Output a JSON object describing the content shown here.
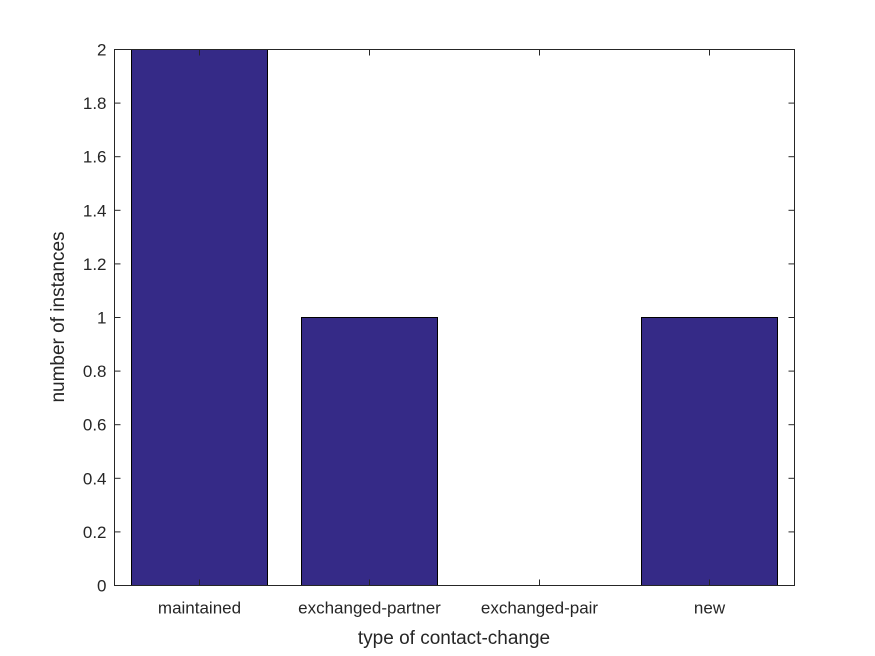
{
  "chart_data": {
    "type": "bar",
    "categories": [
      "maintained",
      "exchanged-partner",
      "exchanged-pair",
      "new"
    ],
    "values": [
      2,
      1,
      0,
      1
    ],
    "title": "",
    "xlabel": "type of contact-change",
    "ylabel": "number of instances",
    "ylim": [
      0,
      2
    ],
    "yticks": [
      "0",
      "0.2",
      "0.4",
      "0.6",
      "0.8",
      "1",
      "1.2",
      "1.4",
      "1.6",
      "1.8",
      "2"
    ],
    "grid": false,
    "bar_color": "#352a87"
  }
}
